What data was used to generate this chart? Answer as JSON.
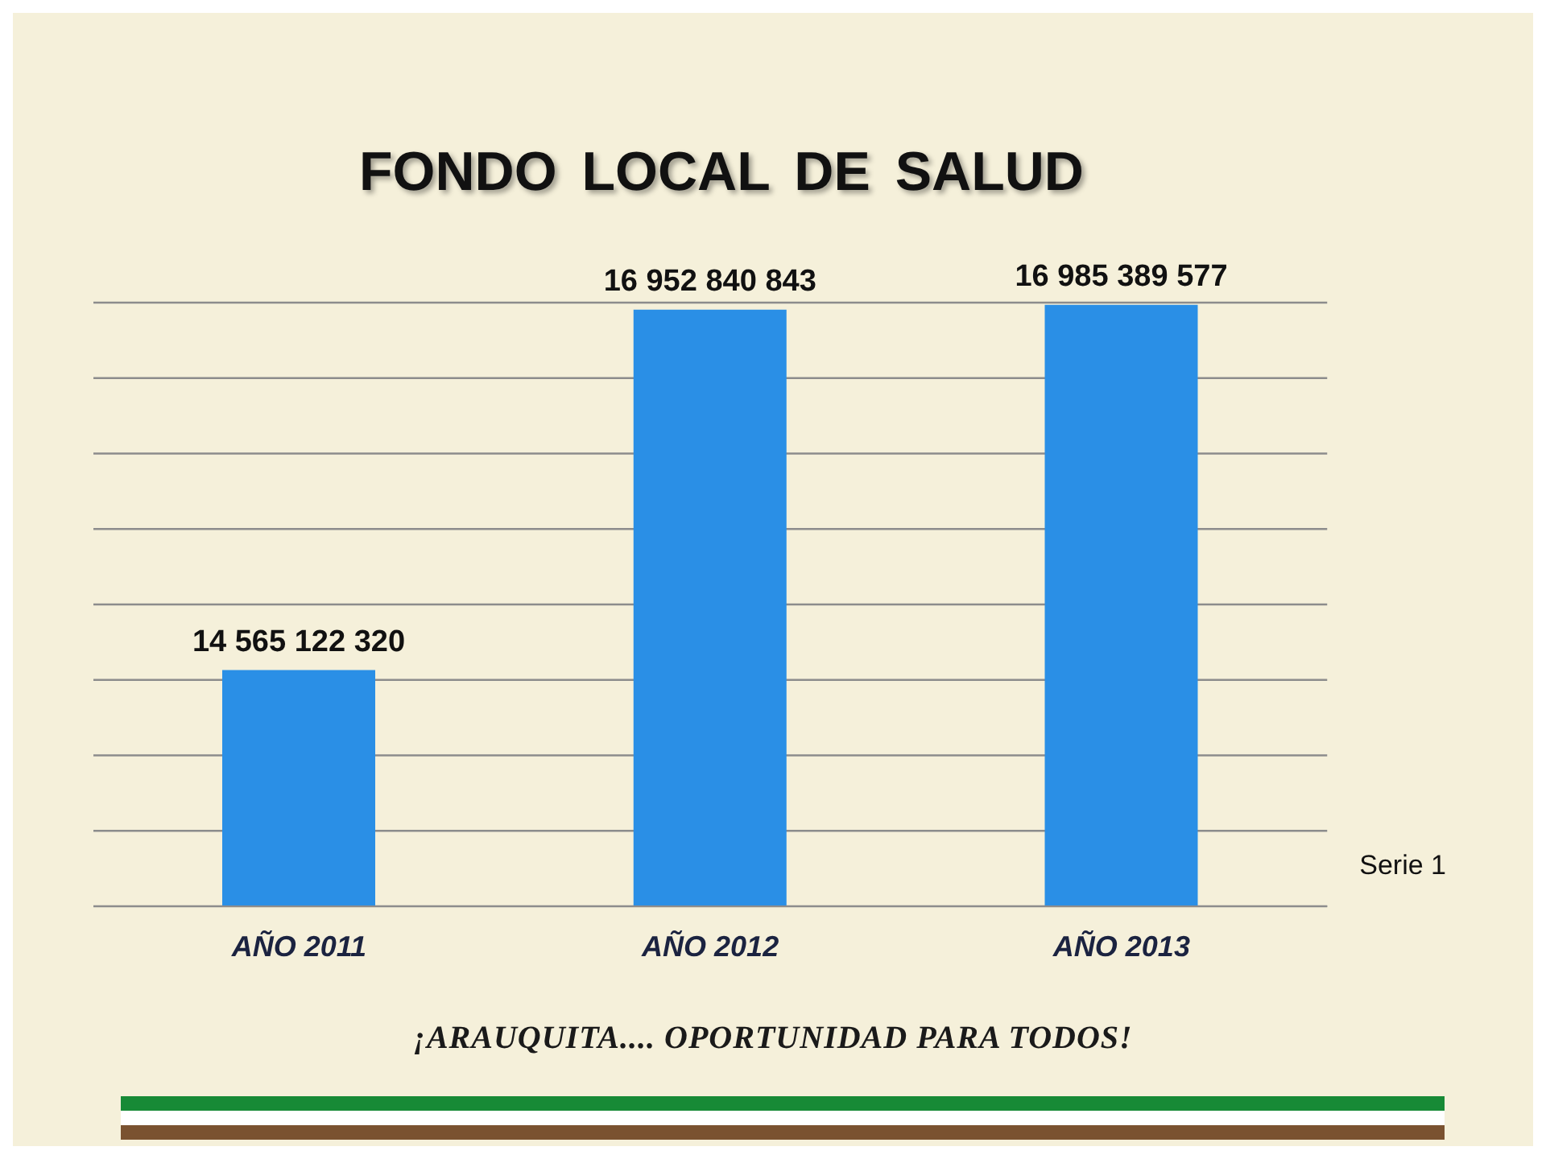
{
  "chart_data": {
    "type": "bar",
    "title": "FONDO LOCAL DE SALUD",
    "categories": [
      "AÑO 2011",
      "AÑO 2012",
      "AÑO 2013"
    ],
    "series": [
      {
        "name": "Serie 1",
        "color": "#2a8fe6",
        "values": [
          14565122320,
          16952840843,
          16985389577
        ],
        "value_labels": [
          "14 565 122 320",
          "16 952 840 843",
          "16 985 389 577"
        ]
      }
    ],
    "ylim": [
      13000000000,
      17000000000
    ],
    "grid": "y",
    "tick_labels": "x",
    "legend": "right",
    "annotations": [
      "¡ARAUQUITA.... OPORTUNIDAD PARA TODOS!"
    ]
  }
}
